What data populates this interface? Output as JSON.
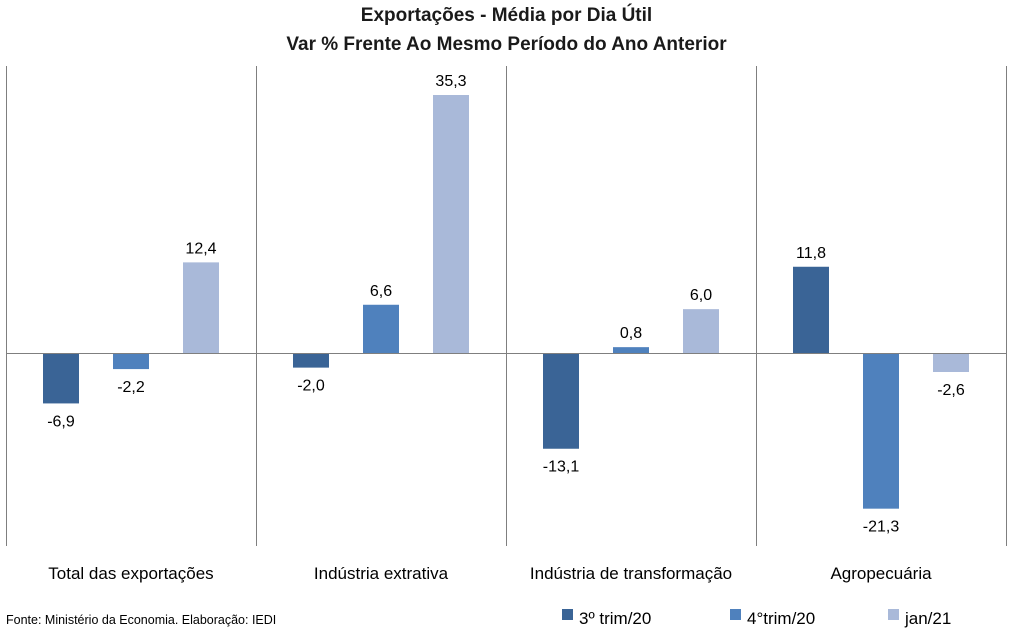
{
  "chart_data": {
    "type": "bar",
    "title": "Exportações - Média por Dia Útil",
    "subtitle": "Var % Frente Ao Mesmo Período do Ano Anterior",
    "categories": [
      "Total das exportações",
      "Indústria extrativa",
      "Indústria de transformação",
      "Agropecuária"
    ],
    "series": [
      {
        "name": "3º trim/20",
        "color": "#3a6496",
        "values": [
          -6.9,
          -2.0,
          -13.1,
          11.8
        ],
        "labels": [
          "-6,9",
          "-2,0",
          "-13,1",
          "11,8"
        ]
      },
      {
        "name": "4°trim/20",
        "color": "#4f81bd",
        "values": [
          -2.2,
          6.6,
          0.8,
          -21.3
        ],
        "labels": [
          "-2,2",
          "6,6",
          "0,8",
          "-21,3"
        ]
      },
      {
        "name": "jan/21",
        "color": "#a9b9d9",
        "values": [
          12.4,
          35.3,
          6.0,
          -2.6
        ],
        "labels": [
          "12,4",
          "35,3",
          "6,0",
          "-2,6"
        ]
      }
    ],
    "ylim": [
      -26,
      39.5
    ],
    "grid": false,
    "legend_position": "bottom-right",
    "source": "Fonte: Ministério da Economia. Elaboração: IEDI"
  }
}
